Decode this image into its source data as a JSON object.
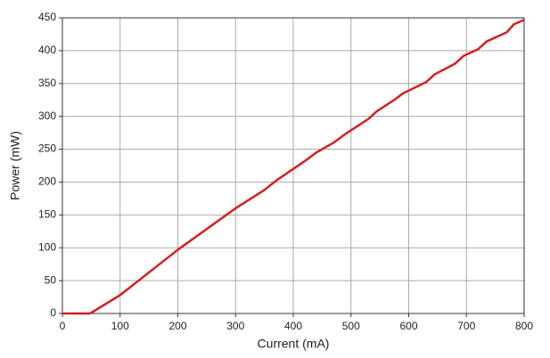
{
  "chart_data": {
    "type": "line",
    "x_label": "Current (mA)",
    "y_label": "Power (mW)",
    "x": [
      0,
      48,
      100,
      200,
      300,
      350,
      370,
      420,
      440,
      470,
      490,
      530,
      545,
      575,
      590,
      630,
      645,
      680,
      695,
      720,
      735,
      770,
      782,
      800
    ],
    "series": [
      {
        "color": "#d42020",
        "values": [
          0,
          0,
          28,
          97,
          160,
          188,
          202,
          232,
          245,
          260,
          273,
          296,
          308,
          325,
          335,
          352,
          364,
          380,
          392,
          402,
          414,
          428,
          440,
          447
        ]
      }
    ],
    "xlim": [
      0,
      800
    ],
    "xticks": [
      0,
      100,
      200,
      300,
      400,
      500,
      600,
      700,
      800
    ],
    "ylim": [
      0,
      450
    ],
    "yticks": [
      0,
      50,
      100,
      150,
      200,
      250,
      300,
      350,
      400,
      450
    ],
    "grid": true
  }
}
